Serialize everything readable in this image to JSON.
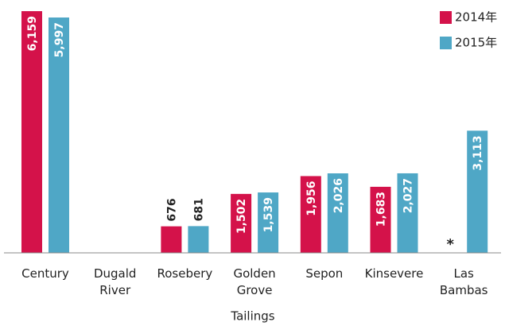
{
  "chart_data": {
    "type": "bar",
    "categories": [
      "Century",
      "Dugald River",
      "Rosebery",
      "Golden Grove",
      "Sepon",
      "Kinsevere",
      "Las Bambas"
    ],
    "series": [
      {
        "name": "2014年",
        "color": "#d4124a",
        "values": [
          6159,
          null,
          676,
          1502,
          1956,
          1683,
          null
        ],
        "value_labels": [
          "6,159",
          null,
          "676",
          "1,502",
          "1,956",
          "1,683",
          null
        ]
      },
      {
        "name": "2015年",
        "color": "#4fa7c6",
        "values": [
          5997,
          null,
          681,
          1539,
          2026,
          2027,
          3113
        ],
        "value_labels": [
          "5,997",
          null,
          "681",
          "1,539",
          "2,026",
          "2,027",
          "3,113"
        ]
      }
    ],
    "annotation": "*",
    "xlabel": "Tailings",
    "ylim": [
      0,
      6200
    ],
    "legend": "top-right"
  }
}
